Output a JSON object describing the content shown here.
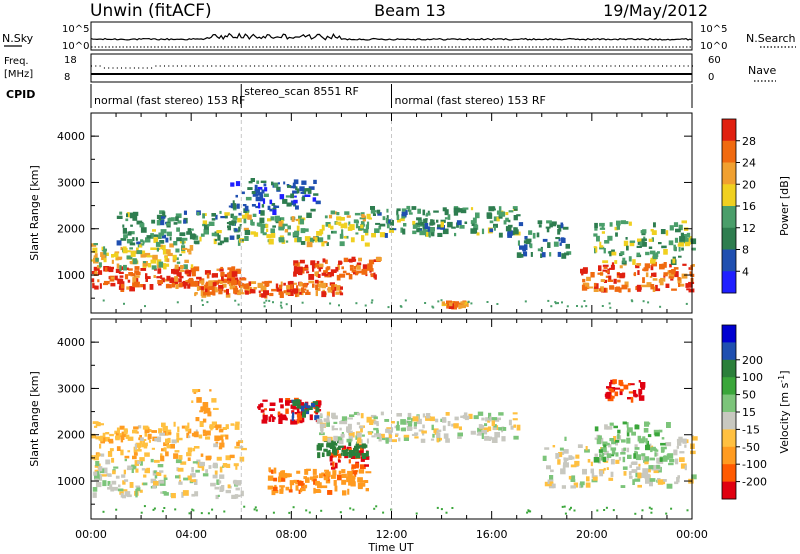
{
  "header": {
    "title": "Unwin (fitACF)",
    "beam": "Beam 13",
    "date": "19/May/2012"
  },
  "strip_labels": {
    "nsky": "N.Sky",
    "nsearch": "N.Search",
    "freq_line1": "Freq.",
    "freq_line2": "[MHz]",
    "nave": "Nave",
    "cpid": "CPID",
    "nsky_top": "10^5",
    "nsky_bottom": "10^0",
    "nsearch_top": "10^5",
    "nsearch_bottom": "10^0",
    "freq_top": "18",
    "freq_bottom": "8",
    "nave_top": "60",
    "nave_bottom": "0"
  },
  "cpid_segments": [
    {
      "label": "normal (fast stereo) 153 RF",
      "start": 0,
      "end": 6
    },
    {
      "label": "stereo_scan 8551 RF",
      "start": 6,
      "end": 12
    },
    {
      "label": "normal (fast stereo) 153 RF",
      "start": 12,
      "end": 24
    }
  ],
  "colors": {
    "power_scale": [
      "#1f1fff",
      "#1f4fb0",
      "#2e7d4f",
      "#4a9e6a",
      "#f0d020",
      "#f0a030",
      "#f06a10",
      "#e02010"
    ],
    "velocity_scale": [
      "#e00010",
      "#ff5a00",
      "#ff9b20",
      "#ffc040",
      "#c8c8c0",
      "#7cc47a",
      "#3aa63a",
      "#2b7f3a",
      "#1f4fb0",
      "#0000d0"
    ]
  },
  "chart_data": [
    {
      "type": "heatmap",
      "name": "Power panel",
      "xlabel": "Time UT",
      "ylabel": "Slant Range [km]",
      "colorbar_label": "Power [dB]",
      "x_ticks": [
        "00:00",
        "04:00",
        "08:00",
        "12:00",
        "16:00",
        "20:00",
        "00:00"
      ],
      "x_range": [
        0,
        24
      ],
      "y_ticks": [
        "1000",
        "2000",
        "3000",
        "4000"
      ],
      "y_range": [
        180,
        4500
      ],
      "colorbar_ticks": [
        "4",
        "8",
        "12",
        "16",
        "20",
        "24",
        "28"
      ],
      "colorbar_range": [
        0,
        32
      ],
      "features": [
        {
          "t0": 0,
          "t1": 6,
          "r0": 750,
          "r1": 1200,
          "level": 28
        },
        {
          "t0": 0,
          "t1": 4,
          "r0": 1200,
          "r1": 1700,
          "level": 18
        },
        {
          "t0": 1,
          "t1": 6,
          "r0": 1700,
          "r1": 2400,
          "level": 12
        },
        {
          "t0": 4,
          "t1": 10,
          "r0": 600,
          "r1": 900,
          "level": 26
        },
        {
          "t0": 8,
          "t1": 11.5,
          "r0": 1000,
          "r1": 1400,
          "level": 28
        },
        {
          "t0": 6,
          "t1": 11,
          "r0": 1700,
          "r1": 2400,
          "level": 16
        },
        {
          "t0": 11,
          "t1": 17,
          "r0": 1900,
          "r1": 2500,
          "level": 12
        },
        {
          "t0": 17,
          "t1": 19,
          "r0": 1400,
          "r1": 2200,
          "level": 10
        },
        {
          "t0": 19.5,
          "t1": 24,
          "r0": 700,
          "r1": 1300,
          "level": 26
        },
        {
          "t0": 20,
          "t1": 24,
          "r0": 1300,
          "r1": 2200,
          "level": 14
        },
        {
          "t0": 5.5,
          "t1": 9,
          "r0": 2400,
          "r1": 3100,
          "level": 8
        },
        {
          "t0": 14,
          "t1": 15,
          "r0": 350,
          "r1": 450,
          "level": 24
        }
      ]
    },
    {
      "type": "heatmap",
      "name": "Velocity panel",
      "xlabel": "Time UT",
      "ylabel": "Slant Range [km]",
      "colorbar_label": "Velocity [m s^-1]",
      "x_ticks": [
        "00:00",
        "04:00",
        "08:00",
        "12:00",
        "16:00",
        "20:00",
        "00:00"
      ],
      "x_range": [
        0,
        24
      ],
      "y_ticks": [
        "1000",
        "2000",
        "3000",
        "4000"
      ],
      "y_range": [
        180,
        4500
      ],
      "colorbar_ticks": [
        "-200",
        "-100",
        "-50",
        "-15",
        "15",
        "50",
        "100",
        "200"
      ],
      "features": [
        {
          "t0": 0,
          "t1": 6,
          "r0": 700,
          "r1": 1500,
          "vel": 0
        },
        {
          "t0": 0,
          "t1": 6,
          "r0": 1500,
          "r1": 2300,
          "vel": -40
        },
        {
          "t0": 4,
          "t1": 5,
          "r0": 2000,
          "r1": 3000,
          "vel": -60
        },
        {
          "t0": 6.5,
          "t1": 9,
          "r0": 2300,
          "r1": 2800,
          "vel": -220
        },
        {
          "t0": 8,
          "t1": 9,
          "r0": 2400,
          "r1": 2800,
          "vel": 200
        },
        {
          "t0": 7,
          "t1": 11,
          "r0": 800,
          "r1": 1300,
          "vel": -80
        },
        {
          "t0": 9.5,
          "t1": 11,
          "r0": 1300,
          "r1": 1800,
          "vel": -200
        },
        {
          "t0": 9,
          "t1": 11,
          "r0": 1600,
          "r1": 1900,
          "vel": 150
        },
        {
          "t0": 9,
          "t1": 17,
          "r0": 1900,
          "r1": 2500,
          "vel": 0
        },
        {
          "t0": 18,
          "t1": 24,
          "r0": 900,
          "r1": 2000,
          "vel": 0
        },
        {
          "t0": 20,
          "t1": 23,
          "r0": 1500,
          "r1": 2300,
          "vel": 40
        },
        {
          "t0": 20.5,
          "t1": 22,
          "r0": 2800,
          "r1": 3200,
          "vel": -200
        }
      ]
    }
  ]
}
